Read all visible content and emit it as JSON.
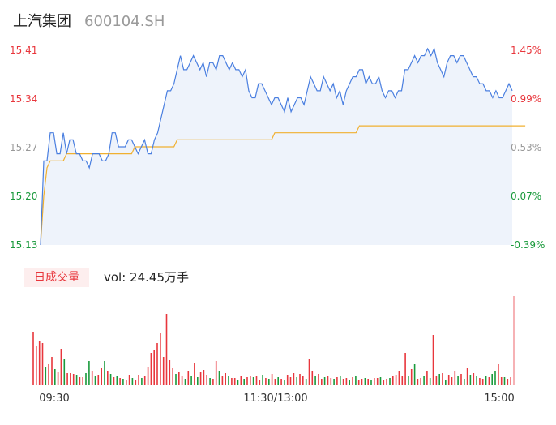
{
  "header": {
    "name": "上汽集团",
    "code": "600104.SH"
  },
  "volume": {
    "tab_label": "日成交量",
    "vol_prefix": "vol: ",
    "vol_value": "24.45万手"
  },
  "colors": {
    "up": "#e8363c",
    "down": "#1a9a3c",
    "neutral": "#999999",
    "price_line": "#4a7fe0",
    "avg_line": "#f0b030",
    "area_fill": "#eef3fb"
  },
  "chart_data": {
    "type": "line",
    "price_axis": {
      "min": 15.13,
      "max": 15.41,
      "ticks": [
        "15.41",
        "15.34",
        "15.27",
        "15.20",
        "15.13"
      ]
    },
    "pct_axis": {
      "ticks": [
        "1.45%",
        "0.99%",
        "0.53%",
        "0.07%",
        "-0.39%"
      ]
    },
    "x_ticks": [
      "09:30",
      "11:30/13:00",
      "15:00"
    ],
    "price_series": [
      15.13,
      15.25,
      15.25,
      15.29,
      15.29,
      15.26,
      15.26,
      15.29,
      15.26,
      15.28,
      15.28,
      15.26,
      15.26,
      15.25,
      15.25,
      15.24,
      15.26,
      15.26,
      15.26,
      15.25,
      15.25,
      15.26,
      15.29,
      15.29,
      15.27,
      15.27,
      15.27,
      15.28,
      15.28,
      15.27,
      15.26,
      15.27,
      15.28,
      15.26,
      15.26,
      15.28,
      15.29,
      15.31,
      15.33,
      15.35,
      15.35,
      15.36,
      15.38,
      15.4,
      15.38,
      15.38,
      15.39,
      15.4,
      15.39,
      15.38,
      15.39,
      15.37,
      15.39,
      15.39,
      15.38,
      15.4,
      15.4,
      15.39,
      15.38,
      15.39,
      15.38,
      15.38,
      15.37,
      15.38,
      15.35,
      15.34,
      15.34,
      15.36,
      15.36,
      15.35,
      15.34,
      15.33,
      15.34,
      15.34,
      15.33,
      15.32,
      15.34,
      15.32,
      15.33,
      15.34,
      15.34,
      15.33,
      15.35,
      15.37,
      15.36,
      15.35,
      15.35,
      15.37,
      15.36,
      15.35,
      15.36,
      15.34,
      15.35,
      15.33,
      15.35,
      15.36,
      15.37,
      15.37,
      15.38,
      15.38,
      15.36,
      15.37,
      15.36,
      15.36,
      15.37,
      15.35,
      15.34,
      15.35,
      15.35,
      15.34,
      15.35,
      15.35,
      15.38,
      15.38,
      15.39,
      15.4,
      15.39,
      15.4,
      15.4,
      15.41,
      15.4,
      15.41,
      15.39,
      15.38,
      15.37,
      15.39,
      15.4,
      15.4,
      15.39,
      15.4,
      15.4,
      15.39,
      15.38,
      15.37,
      15.37,
      15.36,
      15.36,
      15.35,
      15.35,
      15.34,
      15.35,
      15.34,
      15.34,
      15.35,
      15.36,
      15.35
    ],
    "avg_series": [
      15.13,
      15.2,
      15.24,
      15.25,
      15.25,
      15.25,
      15.25,
      15.25,
      15.26,
      15.26,
      15.26,
      15.26,
      15.26,
      15.26,
      15.26,
      15.26,
      15.26,
      15.26,
      15.26,
      15.26,
      15.26,
      15.26,
      15.26,
      15.26,
      15.26,
      15.26,
      15.26,
      15.26,
      15.26,
      15.27,
      15.27,
      15.27,
      15.27,
      15.27,
      15.27,
      15.27,
      15.27,
      15.27,
      15.27,
      15.27,
      15.27,
      15.27,
      15.28,
      15.28,
      15.28,
      15.28,
      15.28,
      15.28,
      15.28,
      15.28,
      15.28,
      15.28,
      15.28,
      15.28,
      15.28,
      15.28,
      15.28,
      15.28,
      15.28,
      15.28,
      15.28,
      15.28,
      15.28,
      15.28,
      15.28,
      15.28,
      15.28,
      15.28,
      15.28,
      15.28,
      15.28,
      15.28,
      15.29,
      15.29,
      15.29,
      15.29,
      15.29,
      15.29,
      15.29,
      15.29,
      15.29,
      15.29,
      15.29,
      15.29,
      15.29,
      15.29,
      15.29,
      15.29,
      15.29,
      15.29,
      15.29,
      15.29,
      15.29,
      15.29,
      15.29,
      15.29,
      15.29,
      15.29,
      15.3,
      15.3,
      15.3,
      15.3,
      15.3,
      15.3,
      15.3,
      15.3,
      15.3,
      15.3,
      15.3,
      15.3,
      15.3,
      15.3,
      15.3,
      15.3,
      15.3,
      15.3,
      15.3,
      15.3,
      15.3,
      15.3,
      15.3,
      15.3,
      15.3,
      15.3,
      15.3,
      15.3,
      15.3,
      15.3,
      15.3,
      15.3,
      15.3,
      15.3,
      15.3,
      15.3,
      15.3,
      15.3,
      15.3,
      15.3,
      15.3,
      15.3,
      15.3,
      15.3,
      15.3,
      15.3,
      15.3,
      15.3,
      15.3,
      15.3,
      15.3,
      15.3
    ],
    "volume_series": [
      66,
      48,
      54,
      52,
      22,
      26,
      35,
      20,
      16,
      45,
      32,
      15,
      15,
      14,
      13,
      10,
      10,
      15,
      30,
      18,
      12,
      13,
      21,
      30,
      17,
      14,
      10,
      12,
      9,
      8,
      7,
      13,
      9,
      7,
      13,
      9,
      11,
      22,
      40,
      44,
      52,
      65,
      35,
      88,
      31,
      21,
      14,
      16,
      12,
      8,
      17,
      11,
      27,
      10,
      16,
      19,
      13,
      9,
      8,
      30,
      17,
      11,
      15,
      12,
      9,
      9,
      7,
      12,
      8,
      10,
      12,
      10,
      12,
      7,
      13,
      9,
      8,
      14,
      8,
      10,
      8,
      6,
      13,
      10,
      15,
      10,
      14,
      11,
      8,
      32,
      18,
      12,
      14,
      8,
      10,
      12,
      9,
      8,
      10,
      11,
      8,
      9,
      7,
      10,
      12,
      7,
      8,
      9,
      8,
      7,
      9,
      9,
      10,
      7,
      8,
      9,
      11,
      13,
      18,
      12,
      40,
      12,
      20,
      26,
      8,
      9,
      12,
      18,
      9,
      62,
      11,
      14,
      15,
      7,
      13,
      10,
      18,
      11,
      14,
      8,
      21,
      13,
      15,
      11,
      9,
      8,
      12,
      10,
      14,
      18,
      26,
      10,
      10,
      8,
      10,
      110
    ],
    "volume_dir": [
      1,
      1,
      1,
      1,
      0,
      1,
      1,
      0,
      1,
      1,
      0,
      1,
      1,
      1,
      0,
      1,
      1,
      0,
      0,
      1,
      0,
      1,
      1,
      0,
      1,
      0,
      1,
      0,
      1,
      0,
      1,
      1,
      0,
      1,
      1,
      0,
      1,
      1,
      1,
      1,
      1,
      1,
      1,
      1,
      1,
      1,
      0,
      1,
      1,
      0,
      1,
      0,
      1,
      0,
      1,
      1,
      1,
      0,
      1,
      1,
      0,
      1,
      1,
      0,
      1,
      1,
      0,
      1,
      0,
      1,
      1,
      0,
      1,
      1,
      0,
      1,
      0,
      1,
      1,
      0,
      1,
      0,
      1,
      1,
      1,
      0,
      1,
      1,
      0,
      1,
      1,
      0,
      1,
      1,
      0,
      1,
      1,
      0,
      1,
      0,
      1,
      1,
      0,
      1,
      0,
      1,
      1,
      0,
      1,
      0,
      1,
      1,
      0,
      1,
      1,
      0,
      1,
      1,
      1,
      1,
      1,
      0,
      1,
      0,
      1,
      1,
      0,
      1,
      0,
      1,
      1,
      0,
      1,
      0,
      1,
      1,
      1,
      0,
      1,
      0,
      1,
      0,
      1,
      0,
      1,
      1,
      0,
      1,
      0,
      0,
      1,
      1,
      0,
      1,
      1,
      1
    ]
  }
}
